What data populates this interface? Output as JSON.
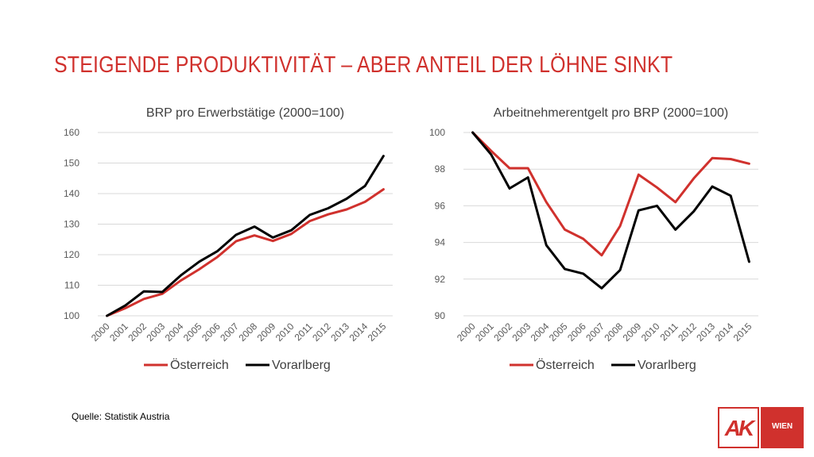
{
  "page": {
    "title": "STEIGENDE PRODUKTIVITÄT – ABER ANTEIL DER LÖHNE SINKT",
    "source": "Quelle: Statistik Austria",
    "logo_text": "AK",
    "logo_sub": "WIEN"
  },
  "colors": {
    "title": "#d0312d",
    "oesterreich": "#d0312d",
    "vorarlberg": "#000000",
    "brand": "#d0312d"
  },
  "chart_data": [
    {
      "type": "line",
      "title": "BRP pro Erwerbstätige (2000=100)",
      "xlabel": "",
      "ylabel": "",
      "x": [
        "2000",
        "2001",
        "2002",
        "2003",
        "2004",
        "2005",
        "2006",
        "2007",
        "2008",
        "2009",
        "2010",
        "2011",
        "2012",
        "2013",
        "2014",
        "2015"
      ],
      "ylim": [
        100,
        160
      ],
      "yticks": [
        100,
        110,
        120,
        130,
        140,
        150,
        160
      ],
      "grid": true,
      "legend": "bottom",
      "series": [
        {
          "name": "Österreich",
          "color": "#d0312d",
          "values": [
            100,
            102.5,
            105.5,
            107.2,
            111.5,
            115.2,
            119.3,
            124.4,
            126.3,
            124.5,
            126.8,
            131.0,
            133.2,
            134.8,
            137.3,
            141.4
          ]
        },
        {
          "name": "Vorarlberg",
          "color": "#000000",
          "values": [
            100,
            103.4,
            108.0,
            107.8,
            113.2,
            117.7,
            121.2,
            126.5,
            129.2,
            125.6,
            128.0,
            133.0,
            135.2,
            138.3,
            142.5,
            152.3
          ]
        }
      ]
    },
    {
      "type": "line",
      "title": "Arbeitnehmerentgelt pro BRP (2000=100)",
      "xlabel": "",
      "ylabel": "",
      "x": [
        "2000",
        "2001",
        "2002",
        "2003",
        "2004",
        "2005",
        "2006",
        "2007",
        "2008",
        "2009",
        "2010",
        "2011",
        "2012",
        "2013",
        "2014",
        "2015"
      ],
      "ylim": [
        90,
        100
      ],
      "yticks": [
        90,
        92,
        94,
        96,
        98,
        100
      ],
      "grid": true,
      "legend": "bottom",
      "series": [
        {
          "name": "Österreich",
          "color": "#d0312d",
          "values": [
            100,
            99.0,
            98.05,
            98.05,
            96.2,
            94.7,
            94.2,
            93.3,
            94.9,
            97.7,
            97.0,
            96.2,
            97.5,
            98.6,
            98.55,
            98.3
          ]
        },
        {
          "name": "Vorarlberg",
          "color": "#000000",
          "values": [
            100,
            98.8,
            96.95,
            97.55,
            93.85,
            92.55,
            92.3,
            91.5,
            92.5,
            95.75,
            96.0,
            94.7,
            95.7,
            97.05,
            96.55,
            92.95
          ]
        }
      ]
    }
  ]
}
